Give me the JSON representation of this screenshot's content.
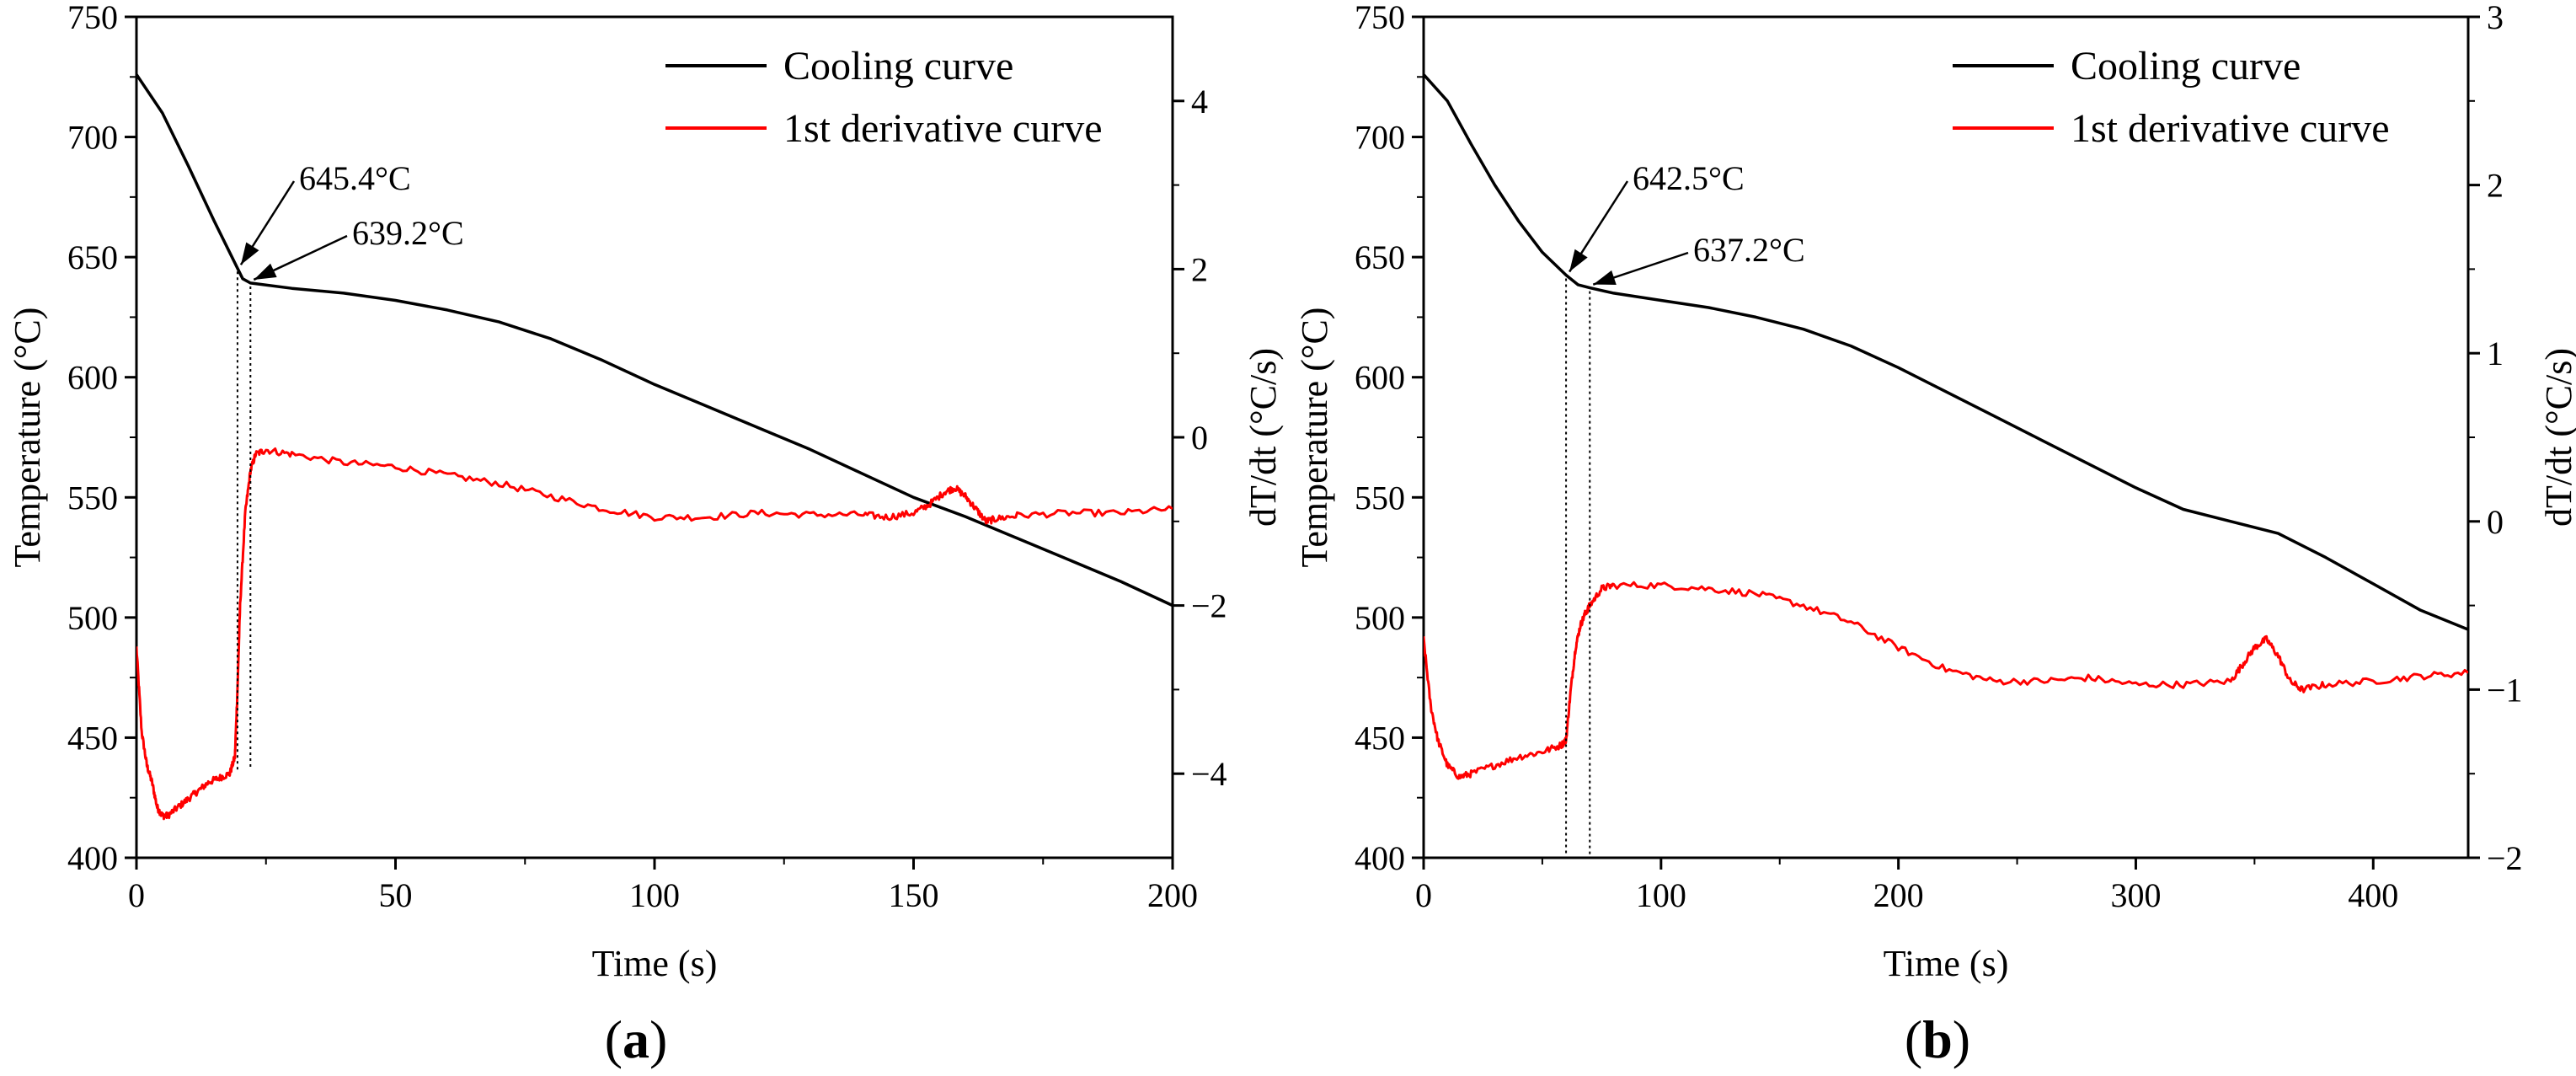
{
  "chart_data": [
    {
      "type": "line",
      "panel_label": {
        "open": "(",
        "letter": "a",
        "close": ")"
      },
      "xlabel": "Time (s)",
      "ylabel": "Temperature (°C)",
      "y2label": "dT/dt (°C/s)",
      "xlim": [
        0,
        200
      ],
      "ylim": [
        400,
        750
      ],
      "y2lim": [
        -5,
        5
      ],
      "xticks": [
        0,
        50,
        100,
        150,
        200
      ],
      "yticks": [
        400,
        450,
        500,
        550,
        600,
        650,
        700,
        750
      ],
      "y2ticks": [
        -4,
        -2,
        0,
        2,
        4
      ],
      "legend_position": "top-right",
      "series": [
        {
          "name": "Cooling curve",
          "color": "#000000",
          "axis": "left",
          "x": [
            0,
            5,
            10,
            15,
            19.5,
            20.5,
            22,
            30,
            40,
            50,
            60,
            70,
            80,
            90,
            100,
            110,
            120,
            130,
            140,
            150,
            160,
            170,
            180,
            190,
            200
          ],
          "y": [
            726,
            710,
            688,
            665,
            645.4,
            641,
            639.2,
            637,
            635,
            632,
            628,
            623,
            616,
            607,
            597,
            588,
            579,
            570,
            560,
            550,
            542,
            533,
            524,
            515,
            505
          ]
        },
        {
          "name": "1st derivative curve",
          "color": "#ff0000",
          "axis": "right",
          "noise": 0.04,
          "x": [
            0,
            1,
            2,
            3,
            4,
            5,
            6,
            8,
            10,
            12,
            14,
            16,
            18,
            19,
            19.5,
            20,
            21,
            22,
            23,
            25,
            30,
            40,
            50,
            60,
            70,
            80,
            90,
            100,
            110,
            120,
            130,
            140,
            145,
            150,
            153,
            156,
            158,
            160,
            162,
            164,
            166,
            170,
            180,
            190,
            200
          ],
          "y": [
            -2.5,
            -3.5,
            -3.9,
            -4.1,
            -4.4,
            -4.5,
            -4.5,
            -4.4,
            -4.3,
            -4.2,
            -4.1,
            -4.05,
            -4.0,
            -3.8,
            -3.0,
            -2.0,
            -0.9,
            -0.4,
            -0.2,
            -0.15,
            -0.2,
            -0.3,
            -0.35,
            -0.45,
            -0.55,
            -0.7,
            -0.85,
            -0.95,
            -0.95,
            -0.9,
            -0.92,
            -0.92,
            -0.95,
            -0.9,
            -0.8,
            -0.65,
            -0.6,
            -0.7,
            -0.85,
            -1.0,
            -0.97,
            -0.93,
            -0.9,
            -0.9,
            -0.85
          ]
        }
      ],
      "annotations": [
        {
          "text": "645.4°C",
          "x": 19.5,
          "y": 645.4
        },
        {
          "text": "639.2°C",
          "x": 22,
          "y": 639.2
        }
      ]
    },
    {
      "type": "line",
      "panel_label": {
        "open": "(",
        "letter": "b",
        "close": ")"
      },
      "xlabel": "Time (s)",
      "ylabel": "Temperature (°C)",
      "y2label": "dT/dt (°C/s)",
      "xlim": [
        0,
        440
      ],
      "ylim": [
        400,
        750
      ],
      "y2lim": [
        -2,
        3
      ],
      "xticks": [
        0,
        100,
        200,
        300,
        400
      ],
      "yticks": [
        400,
        450,
        500,
        550,
        600,
        650,
        700,
        750
      ],
      "y2ticks": [
        -2,
        -1,
        0,
        1,
        2,
        3
      ],
      "legend_position": "top-right",
      "series": [
        {
          "name": "Cooling curve",
          "color": "#000000",
          "axis": "left",
          "x": [
            0,
            10,
            20,
            30,
            40,
            50,
            60,
            65,
            70,
            80,
            100,
            120,
            140,
            160,
            180,
            200,
            220,
            240,
            260,
            280,
            300,
            320,
            340,
            360,
            380,
            400,
            420,
            440
          ],
          "y": [
            726,
            715,
            697,
            680,
            665,
            652,
            642.5,
            638.5,
            637.2,
            635,
            632,
            629,
            625,
            620,
            613,
            604,
            594,
            584,
            574,
            564,
            554,
            545,
            540,
            535,
            525,
            514,
            503,
            495
          ]
        },
        {
          "name": "1st derivative curve",
          "color": "#ff0000",
          "axis": "right",
          "noise": 0.02,
          "x": [
            0,
            3,
            6,
            10,
            15,
            20,
            30,
            40,
            50,
            58,
            60,
            62,
            64,
            66,
            68,
            70,
            75,
            80,
            100,
            120,
            140,
            160,
            180,
            200,
            220,
            240,
            260,
            280,
            300,
            320,
            340,
            345,
            350,
            355,
            360,
            365,
            370,
            380,
            400,
            420,
            440
          ],
          "y": [
            -0.7,
            -1.1,
            -1.3,
            -1.45,
            -1.52,
            -1.5,
            -1.45,
            -1.4,
            -1.37,
            -1.33,
            -1.3,
            -1.0,
            -0.75,
            -0.62,
            -0.55,
            -0.5,
            -0.4,
            -0.38,
            -0.38,
            -0.4,
            -0.43,
            -0.5,
            -0.6,
            -0.75,
            -0.88,
            -0.95,
            -0.95,
            -0.93,
            -0.97,
            -0.97,
            -0.95,
            -0.85,
            -0.75,
            -0.7,
            -0.8,
            -0.95,
            -1.0,
            -0.97,
            -0.95,
            -0.92,
            -0.9
          ]
        }
      ],
      "annotations": [
        {
          "text": "642.5°C",
          "x": 60,
          "y": 642.5
        },
        {
          "text": "637.2°C",
          "x": 70,
          "y": 637.2
        }
      ]
    }
  ]
}
